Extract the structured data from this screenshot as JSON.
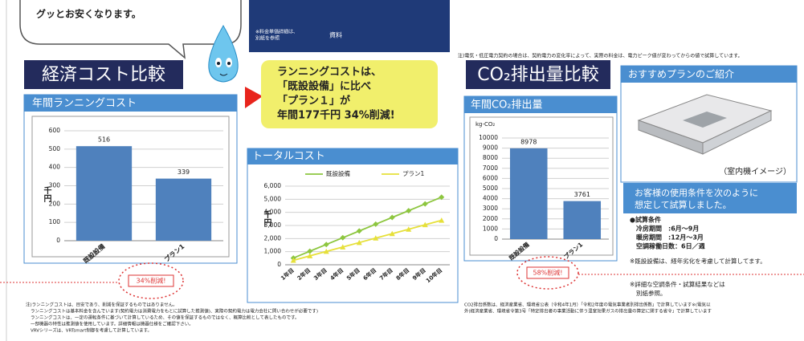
{
  "header": {
    "bubble_text": "グッとお安くなります。",
    "blue_box_note": [
      "※料金単価詳細は、",
      "別紙を参照"
    ],
    "blue_box_label": "資料",
    "top_note": "注)電気・低圧電力契約の場合は、契約電力の変化率によって、実際の料金は、電力ピーク値が変わってからの値で試算しています。"
  },
  "economy": {
    "title": "経済コスト比較",
    "reduction_badge": "34%削減!"
  },
  "summary": {
    "lines": [
      "ランニングコストは、",
      "「既設設備」に比べ",
      "「プラン１」が",
      "年間177千円 34%削減!"
    ]
  },
  "co2": {
    "title": "CO₂排出量比較",
    "reduction_badge": "58%削減!"
  },
  "recommend": {
    "title": "おすすめプランのご紹介",
    "image_caption": "（室内機イメージ）",
    "conditions_title": [
      "お客様の使用条件を次のように",
      "想定して試算しました。"
    ],
    "conditions": [
      "●試算条件",
      "冷房期間　:6月～9月",
      "暖房期間　:12月～3月",
      "空調稼働日数：6日／週"
    ],
    "notes": [
      "※既設設備は、経年劣化を考慮して計算してます。",
      "※詳細な空調条件・試算結果などは",
      "別紙参照。"
    ]
  },
  "footnotes": {
    "left": [
      "注)ランニングコストは、目安であり、削減を保証するものではありません。",
      "ランニングコストは基本料金を含んでいます(契約電力は消費電力をもとに試算した推測値)、実際の契約電力は電力会社に問い合わせが必要です)",
      "ランニングコストは、一定の運転条件に基づいて計算しているため、その値を保証するものではなく、概算比較として表したものです。",
      "一部機器の特性は推測値を使用しています。詳細情報は機器仕様をご確認下さい。",
      "VRVシリーズは、VRTsmart制御を考慮して計算しています。"
    ],
    "right": [
      "CO2排出係数は、経済産業省、環境省公表（令和4年1月）「令和2年度の電気事業者別排出係数」で計算しています※(電気以",
      "外)経済産業省、環境省令第3号「特定排出者の事業活動に伴う温室効果ガスの排出量の算定に関する省令」で計算しています"
    ]
  },
  "chart_data": [
    {
      "type": "bar",
      "title": "年間ランニングコスト",
      "y_label": "千円",
      "categories": [
        "既設設備",
        "プラン1"
      ],
      "values": [
        516,
        339
      ],
      "color": "#4f81bd",
      "ylim": [
        0,
        600
      ],
      "yticks": [
        0,
        100,
        200,
        300,
        400,
        500,
        600
      ],
      "grid": true
    },
    {
      "type": "line",
      "title": "トータルコスト",
      "y_label": "千円",
      "categories": [
        "1年目",
        "2年目",
        "3年目",
        "4年目",
        "5年目",
        "6年目",
        "7年目",
        "8年目",
        "9年目",
        "10年目"
      ],
      "series": [
        {
          "name": "既設設備",
          "color": "#8dc63f",
          "marker": "diamond",
          "values": [
            516,
            1032,
            1548,
            2064,
            2580,
            3096,
            3612,
            4128,
            4644,
            5160
          ]
        },
        {
          "name": "プラン1",
          "color": "#e6e03a",
          "marker": "triangle",
          "values": [
            339,
            678,
            1017,
            1356,
            1695,
            2034,
            2373,
            2712,
            3051,
            3390
          ]
        }
      ],
      "ylim": [
        0,
        6000
      ],
      "yticks": [
        0,
        {
          "value": 1000,
          "label": "1,000"
        },
        {
          "value": 2000,
          "label": "2,000"
        },
        {
          "value": 3000,
          "label": "3,000"
        },
        {
          "value": 4000,
          "label": "4,000"
        },
        {
          "value": 5000,
          "label": "5,000"
        },
        {
          "value": 6000,
          "label": "6,000"
        }
      ],
      "grid": true,
      "legend": "top"
    },
    {
      "type": "bar",
      "title": "年間CO₂排出量",
      "y_label": "kg-CO₂",
      "categories": [
        "既設設備",
        "プラン1"
      ],
      "values": [
        8978,
        3761
      ],
      "color": "#4f81bd",
      "ylim": [
        0,
        10000
      ],
      "yticks": [
        0,
        1000,
        2000,
        3000,
        4000,
        5000,
        6000,
        7000,
        8000,
        9000,
        10000
      ],
      "grid": true
    }
  ]
}
